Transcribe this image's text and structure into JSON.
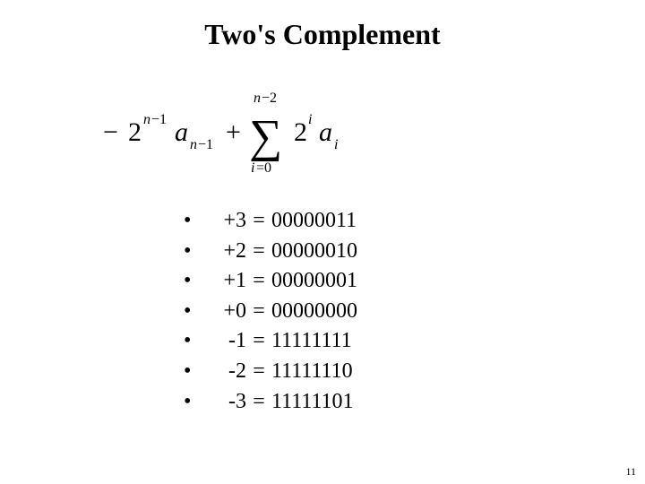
{
  "title": "Two's Complement",
  "slide_number": "11",
  "colors": {
    "background": "#ffffff",
    "text": "#000000"
  },
  "formula": {
    "minus": "−",
    "two": "2",
    "exp_left_pre_italic": "n",
    "exp_left_post": "−1",
    "a": "a",
    "sub_left_pre_italic": "n",
    "sub_left_post": "−1",
    "plus": "+",
    "sum_top_italic_n": "n",
    "sum_top_rest": "−2",
    "sum_bottom_i": "i",
    "sum_bottom_rest": "=0",
    "exp_right_italic": "i",
    "sub_right_italic": "i"
  },
  "items": [
    {
      "decimal": "+3",
      "binary": "00000011"
    },
    {
      "decimal": "+2",
      "binary": "00000010"
    },
    {
      "decimal": "+1",
      "binary": "00000001"
    },
    {
      "decimal": "+0",
      "binary": "00000000"
    },
    {
      "decimal": "-1",
      "binary": "11111111"
    },
    {
      "decimal": "-2",
      "binary": "11111110"
    },
    {
      "decimal": "-3",
      "binary": "11111101"
    }
  ],
  "typography": {
    "title_fontsize": 32,
    "list_fontsize": 24,
    "slidenum_fontsize": 12,
    "font_family": "Times New Roman"
  }
}
